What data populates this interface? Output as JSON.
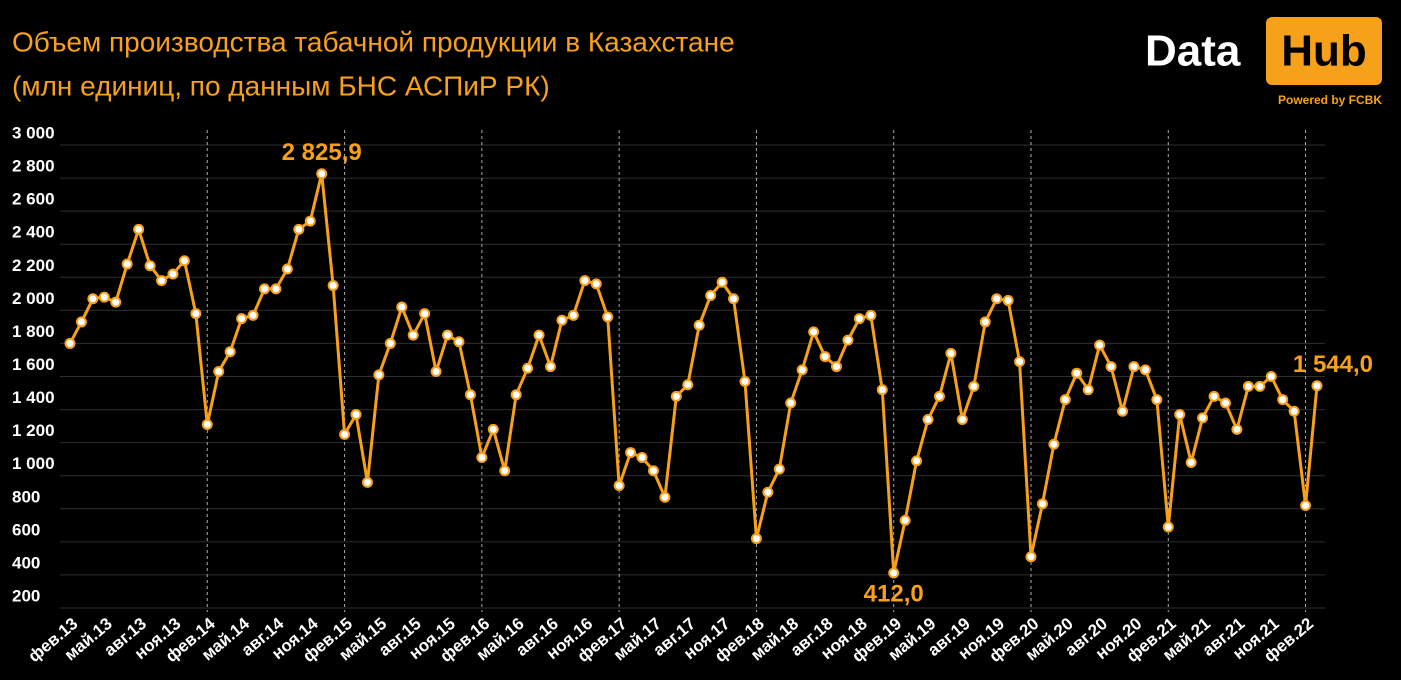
{
  "chart_data": {
    "type": "line",
    "title": "Объем производства табачной продукции в Казахстане",
    "subtitle": "(млн единиц, по данным БНС АСПиР РК)",
    "logo": {
      "left": "Data",
      "right": "Hub",
      "tagline": "Powered by FCBK"
    },
    "color": "#f7a11a",
    "categories": [
      "фев.13",
      null,
      null,
      "май.13",
      null,
      null,
      "авг.13",
      null,
      null,
      "ноя.13",
      null,
      null,
      "фев.14",
      null,
      null,
      "май.14",
      null,
      null,
      "авг.14",
      null,
      null,
      "ноя.14",
      null,
      null,
      "фев.15",
      null,
      null,
      "май.15",
      null,
      null,
      "авг.15",
      null,
      null,
      "ноя.15",
      null,
      null,
      "фев.16",
      null,
      null,
      "май.16",
      null,
      null,
      "авг.16",
      null,
      null,
      "ноя.16",
      null,
      null,
      "фев.17",
      null,
      null,
      "май.17",
      null,
      null,
      "авг.17",
      null,
      null,
      "ноя.17",
      null,
      null,
      "фев.18",
      null,
      null,
      "май.18",
      null,
      null,
      "авг.18",
      null,
      null,
      "ноя.18",
      null,
      null,
      "фев.19",
      null,
      null,
      "май.19",
      null,
      null,
      "авг.19",
      null,
      null,
      "ноя.19",
      null,
      null,
      "фев.20",
      null,
      null,
      "май.20",
      null,
      null,
      "авг.20",
      null,
      null,
      "ноя.20",
      null,
      null,
      "фев.21",
      null,
      null,
      "май.21",
      null,
      null,
      "авг.21",
      null,
      null,
      "ноя.21",
      null,
      null,
      "фев.22",
      null
    ],
    "values": [
      1800,
      1930,
      2070,
      2080,
      2050,
      2280,
      2490,
      2270,
      2180,
      2220,
      2300,
      1980,
      1310,
      1630,
      1750,
      1950,
      1970,
      2130,
      2130,
      2250,
      2490,
      2540,
      2825.9,
      2150,
      1250,
      1370,
      960,
      1610,
      1800,
      2020,
      1850,
      1980,
      1630,
      1850,
      1810,
      1490,
      1110,
      1280,
      1030,
      1490,
      1650,
      1850,
      1660,
      1940,
      1970,
      2180,
      2160,
      1960,
      940,
      1140,
      1110,
      1030,
      870,
      1480,
      1550,
      1910,
      2090,
      2170,
      2070,
      1570,
      620,
      900,
      1040,
      1440,
      1640,
      1870,
      1720,
      1660,
      1820,
      1950,
      1970,
      1520,
      412,
      730,
      1090,
      1340,
      1480,
      1740,
      1340,
      1540,
      1930,
      2070,
      2060,
      1690,
      510,
      830,
      1190,
      1460,
      1620,
      1520,
      1790,
      1660,
      1390,
      1660,
      1640,
      1460,
      690,
      1370,
      1080,
      1350,
      1480,
      1440,
      1280,
      1540,
      1540,
      1600,
      1460,
      1390,
      820,
      1544
    ],
    "value_labels": [
      null,
      null,
      null,
      null,
      null,
      null,
      null,
      null,
      null,
      null,
      null,
      null,
      null,
      null,
      null,
      null,
      null,
      null,
      null,
      null,
      null,
      null,
      "2 825,9",
      null,
      null,
      null,
      null,
      null,
      null,
      null,
      null,
      null,
      null,
      null,
      null,
      null,
      null,
      null,
      null,
      null,
      null,
      null,
      null,
      null,
      null,
      null,
      null,
      null,
      null,
      null,
      null,
      null,
      null,
      null,
      null,
      null,
      null,
      null,
      null,
      null,
      null,
      null,
      null,
      null,
      null,
      null,
      null,
      null,
      null,
      null,
      null,
      null,
      "412,0",
      null,
      null,
      null,
      null,
      null,
      null,
      null,
      null,
      null,
      null,
      null,
      null,
      null,
      null,
      null,
      null,
      null,
      null,
      null,
      null,
      null,
      null,
      null,
      null,
      null,
      null,
      null,
      null,
      null,
      null,
      null,
      null,
      null,
      null,
      null,
      null,
      "1 544,0"
    ],
    "ylim": [
      200,
      3000
    ],
    "yticks": [
      {
        "value": 3000,
        "label": "3 000"
      },
      {
        "value": 2800,
        "label": "2 800"
      },
      {
        "value": 2600,
        "label": "2 600"
      },
      {
        "value": 2400,
        "label": "2 400"
      },
      {
        "value": 2200,
        "label": "2 200"
      },
      {
        "value": 2000,
        "label": "2 000"
      },
      {
        "value": 1800,
        "label": "1 800"
      },
      {
        "value": 1600,
        "label": "1 600"
      },
      {
        "value": 1400,
        "label": "1 400"
      },
      {
        "value": 1200,
        "label": "1 200"
      },
      {
        "value": 1000,
        "label": "1 000"
      },
      800,
      600,
      400,
      200
    ],
    "grid": true
  }
}
